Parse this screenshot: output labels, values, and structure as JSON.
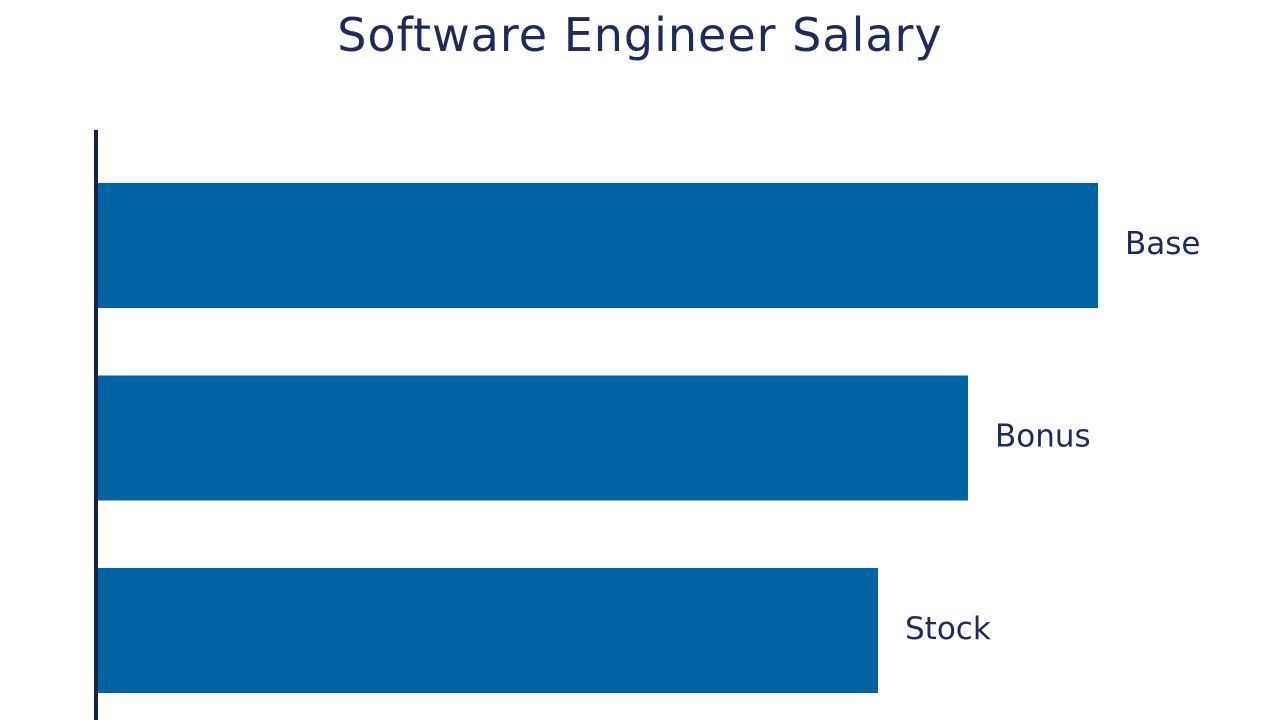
{
  "chart_data": {
    "type": "bar",
    "orientation": "horizontal",
    "title": "Software Engineer Salary",
    "categories": [
      "Base",
      "Bonus",
      "Stock"
    ],
    "values": [
      100,
      87,
      78
    ],
    "xlim": [
      0,
      100
    ],
    "grid": false,
    "legend": "none",
    "bar_color": "#0063a3",
    "axis_color": "#16214a",
    "text_color": "#1c2b5a"
  }
}
